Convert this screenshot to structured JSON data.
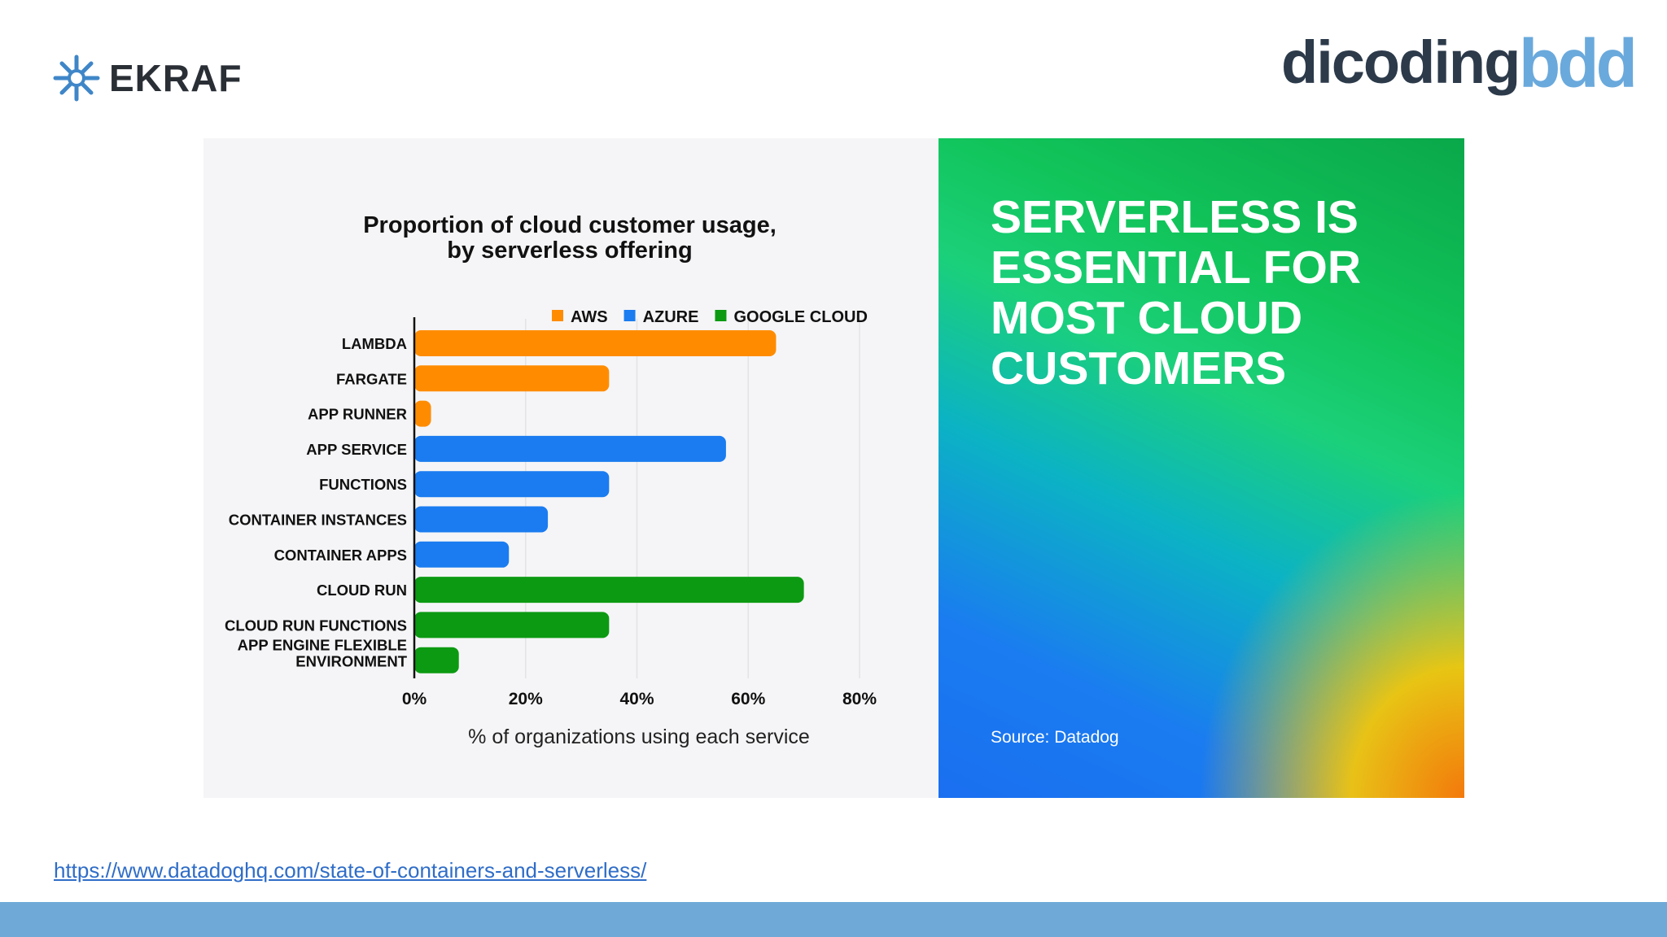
{
  "header": {
    "left_logo": "EKRAF",
    "right_logo_1": "dicoding",
    "right_logo_2": "bdd"
  },
  "panel": {
    "headline": "SERVERLESS IS\nESSENTIAL FOR\nMOST CLOUD\nCUSTOMERS",
    "source": "Source: Datadog"
  },
  "footer": {
    "url": "https://www.datadoghq.com/state-of-containers-and-serverless/"
  },
  "colors": {
    "aws": "#ff8c00",
    "azure": "#1a7cf0",
    "google_cloud": "#0c9a12",
    "footer_bar": "#6fa9d8"
  },
  "chart_data": {
    "type": "bar",
    "orientation": "horizontal",
    "title_lines": [
      "Proportion of cloud customer usage,",
      "by serverless offering"
    ],
    "xlabel": "% of organizations using each service",
    "ylabel": "",
    "xlim": [
      0,
      80
    ],
    "xticks": [
      "0%",
      "20%",
      "40%",
      "60%",
      "80%"
    ],
    "grid": true,
    "legend_position": "top-right",
    "legend": [
      {
        "name": "AWS",
        "color": "#ff8c00"
      },
      {
        "name": "AZURE",
        "color": "#1a7cf0"
      },
      {
        "name": "GOOGLE CLOUD",
        "color": "#0c9a12"
      }
    ],
    "bars": [
      {
        "label": "LAMBDA",
        "value": 65,
        "series": "AWS"
      },
      {
        "label": "FARGATE",
        "value": 35,
        "series": "AWS"
      },
      {
        "label": "APP RUNNER",
        "value": 3,
        "series": "AWS"
      },
      {
        "label": "APP SERVICE",
        "value": 56,
        "series": "AZURE"
      },
      {
        "label": "FUNCTIONS",
        "value": 35,
        "series": "AZURE"
      },
      {
        "label": "CONTAINER INSTANCES",
        "value": 24,
        "series": "AZURE"
      },
      {
        "label": "CONTAINER APPS",
        "value": 17,
        "series": "AZURE"
      },
      {
        "label": "CLOUD RUN",
        "value": 70,
        "series": "GOOGLE CLOUD"
      },
      {
        "label": "CLOUD RUN FUNCTIONS",
        "value": 35,
        "series": "GOOGLE CLOUD"
      },
      {
        "label": "APP ENGINE FLEXIBLE\nENVIRONMENT",
        "value": 8,
        "series": "GOOGLE CLOUD"
      }
    ]
  }
}
